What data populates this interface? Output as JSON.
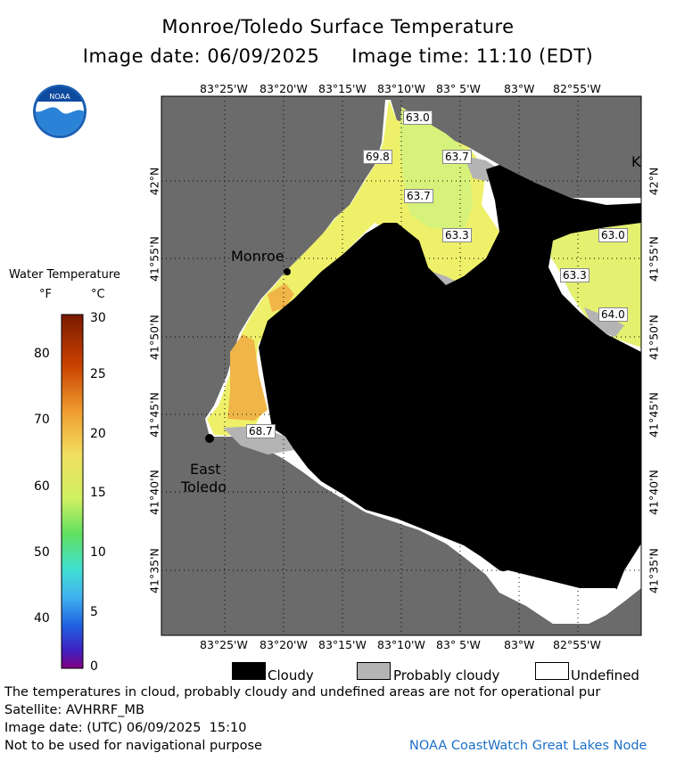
{
  "header": {
    "title": "Monroe/Toledo Surface Temperature",
    "image_date_line": "Image date: 06/09/2025     Image time: 11:10 (EDT)"
  },
  "map": {
    "lon_ticks": [
      "83°25'W",
      "83°20'W",
      "83°15'W",
      "83°10'W",
      "83° 5'W",
      "83°W",
      "82°55'W"
    ],
    "lat_ticks": [
      "42°N",
      "41°55'N",
      "41°50'N",
      "41°45'N",
      "41°40'N",
      "41°35'N"
    ],
    "cities": {
      "monroe": "Monroe",
      "east_toledo_1": "East",
      "east_toledo_2": "Toledo",
      "k_fragment": "K"
    },
    "temps": [
      "63.0",
      "69.8",
      "63.7",
      "63.7",
      "63.3",
      "63.0",
      "63.3",
      "64.0",
      "68.7"
    ],
    "colors": {
      "land": "#6b6b6b",
      "cloud": "#000000",
      "undefined": "#ffffff",
      "probably_cloudy": "#b4b4b4",
      "water_yellow": "#f0f060",
      "water_green": "#d8f070",
      "water_orange": "#f0b040"
    }
  },
  "colorbar": {
    "title": "Water Temperature",
    "unit_f": "°F",
    "unit_c": "°C",
    "f_ticks": [
      "80",
      "70",
      "60",
      "50",
      "40"
    ],
    "c_ticks": [
      "30",
      "25",
      "20",
      "15",
      "10",
      "5",
      "0"
    ]
  },
  "legend": {
    "cloudy": "Cloudy",
    "probably_cloudy": "Probably cloudy",
    "undefined": "Undefined"
  },
  "footer": {
    "line1": "The temperatures in cloud, probably cloudy and undefined areas are not for operational pur",
    "line2": "Satellite: AVHRRF_MB",
    "line3": "Image date: (UTC) 06/09/2025  15:10",
    "line4": "Not to be used for navigational purpose",
    "credit": "NOAA CoastWatch Great Lakes Node"
  },
  "logo": {
    "text": "NOAA"
  }
}
